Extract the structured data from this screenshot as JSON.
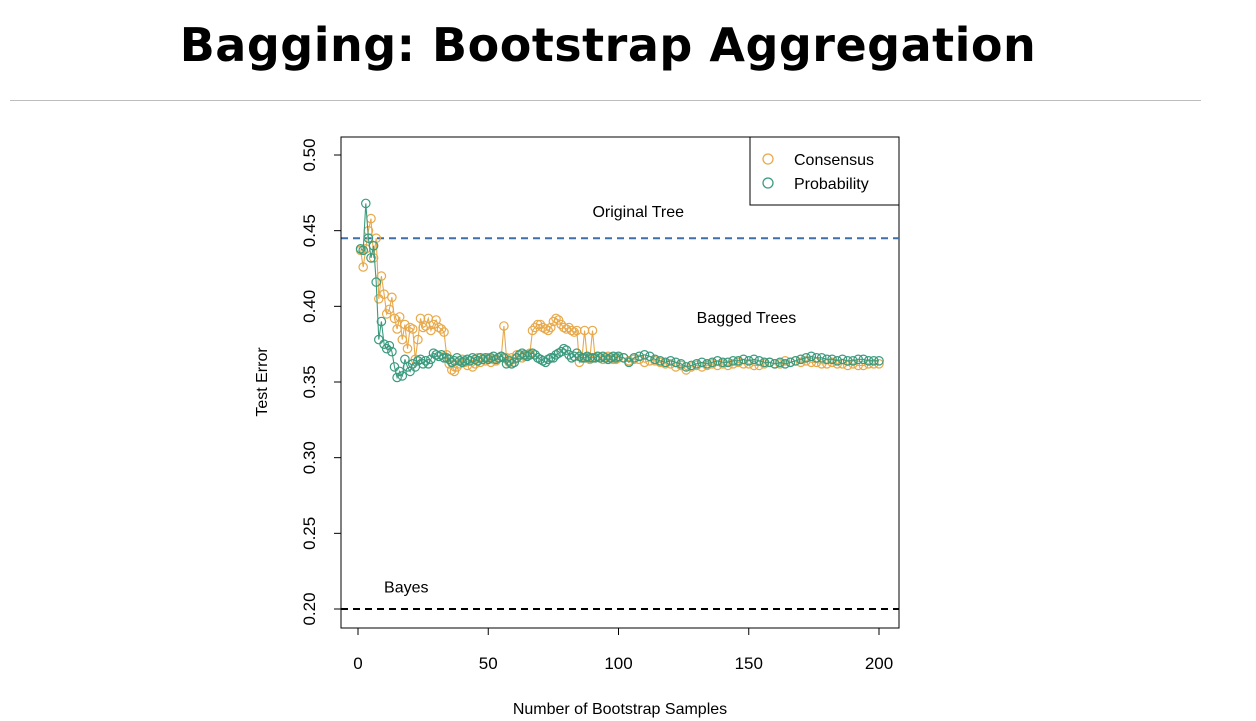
{
  "slide": {
    "title": "Bagging: Bootstrap Aggregation"
  },
  "chart_data": {
    "type": "line",
    "xlabel": "Number of Bootstrap Samples",
    "ylabel": "Test Error",
    "xlim": [
      0,
      200
    ],
    "ylim": [
      0.2,
      0.5
    ],
    "x_ticks": [
      "0",
      "50",
      "100",
      "150",
      "200"
    ],
    "y_ticks": [
      "0.20",
      "0.25",
      "0.30",
      "0.35",
      "0.40",
      "0.45",
      "0.50"
    ],
    "grid": false,
    "legend_position": "top-right",
    "series": [
      {
        "name": "Consensus",
        "color": "#E8A94A",
        "marker": "open-circle",
        "x": [
          1,
          2,
          3,
          4,
          5,
          6,
          7,
          8,
          9,
          10,
          11,
          12,
          13,
          14,
          15,
          16,
          17,
          18,
          19,
          20,
          21,
          22,
          23,
          24,
          25,
          26,
          27,
          28,
          29,
          30,
          31,
          32,
          33,
          34,
          35,
          36,
          37,
          38,
          39,
          40,
          41,
          42,
          43,
          44,
          45,
          46,
          47,
          48,
          49,
          50,
          51,
          52,
          53,
          54,
          55,
          56,
          57,
          58,
          59,
          60,
          61,
          62,
          63,
          64,
          65,
          66,
          67,
          68,
          69,
          70,
          71,
          72,
          73,
          74,
          75,
          76,
          77,
          78,
          79,
          80,
          81,
          82,
          83,
          84,
          85,
          86,
          87,
          88,
          89,
          90,
          91,
          92,
          93,
          94,
          95,
          96,
          97,
          98,
          99,
          100,
          102,
          104,
          106,
          108,
          110,
          112,
          114,
          116,
          118,
          120,
          122,
          124,
          126,
          128,
          130,
          132,
          134,
          136,
          138,
          140,
          142,
          144,
          146,
          148,
          150,
          152,
          154,
          156,
          158,
          160,
          162,
          164,
          166,
          168,
          170,
          172,
          174,
          176,
          178,
          180,
          182,
          184,
          186,
          188,
          190,
          192,
          194,
          196,
          198,
          200
        ],
        "values": [
          0.437,
          0.426,
          0.438,
          0.45,
          0.458,
          0.432,
          0.445,
          0.405,
          0.42,
          0.408,
          0.395,
          0.398,
          0.406,
          0.392,
          0.385,
          0.393,
          0.378,
          0.388,
          0.372,
          0.386,
          0.385,
          0.365,
          0.378,
          0.392,
          0.386,
          0.387,
          0.392,
          0.384,
          0.388,
          0.391,
          0.386,
          0.385,
          0.383,
          0.368,
          0.362,
          0.358,
          0.357,
          0.36,
          0.362,
          0.365,
          0.363,
          0.361,
          0.364,
          0.36,
          0.362,
          0.366,
          0.363,
          0.365,
          0.364,
          0.366,
          0.363,
          0.365,
          0.364,
          0.366,
          0.367,
          0.387,
          0.366,
          0.363,
          0.366,
          0.365,
          0.368,
          0.368,
          0.366,
          0.367,
          0.368,
          0.369,
          0.384,
          0.386,
          0.388,
          0.388,
          0.386,
          0.385,
          0.384,
          0.386,
          0.39,
          0.392,
          0.391,
          0.388,
          0.386,
          0.385,
          0.386,
          0.384,
          0.383,
          0.384,
          0.363,
          0.366,
          0.384,
          0.366,
          0.365,
          0.384,
          0.366,
          0.367,
          0.366,
          0.365,
          0.366,
          0.367,
          0.366,
          0.365,
          0.365,
          0.366,
          0.366,
          0.364,
          0.365,
          0.365,
          0.363,
          0.364,
          0.364,
          0.363,
          0.362,
          0.362,
          0.36,
          0.361,
          0.358,
          0.36,
          0.361,
          0.36,
          0.361,
          0.362,
          0.361,
          0.362,
          0.361,
          0.362,
          0.363,
          0.362,
          0.362,
          0.361,
          0.361,
          0.362,
          0.363,
          0.362,
          0.362,
          0.364,
          0.363,
          0.364,
          0.363,
          0.364,
          0.363,
          0.363,
          0.362,
          0.362,
          0.363,
          0.362,
          0.362,
          0.361,
          0.362,
          0.361,
          0.361,
          0.362,
          0.362,
          0.362
        ]
      },
      {
        "name": "Probability",
        "color": "#3B9B7E",
        "marker": "open-circle",
        "x": [
          1,
          2,
          3,
          4,
          5,
          6,
          7,
          8,
          9,
          10,
          11,
          12,
          13,
          14,
          15,
          16,
          17,
          18,
          19,
          20,
          21,
          22,
          23,
          24,
          25,
          26,
          27,
          28,
          29,
          30,
          31,
          32,
          33,
          34,
          35,
          36,
          37,
          38,
          39,
          40,
          41,
          42,
          43,
          44,
          45,
          46,
          47,
          48,
          49,
          50,
          51,
          52,
          53,
          54,
          55,
          56,
          57,
          58,
          59,
          60,
          61,
          62,
          63,
          64,
          65,
          66,
          67,
          68,
          69,
          70,
          71,
          72,
          73,
          74,
          75,
          76,
          77,
          78,
          79,
          80,
          81,
          82,
          83,
          84,
          85,
          86,
          87,
          88,
          89,
          90,
          91,
          92,
          93,
          94,
          95,
          96,
          97,
          98,
          99,
          100,
          102,
          104,
          106,
          108,
          110,
          112,
          114,
          116,
          118,
          120,
          122,
          124,
          126,
          128,
          130,
          132,
          134,
          136,
          138,
          140,
          142,
          144,
          146,
          148,
          150,
          152,
          154,
          156,
          158,
          160,
          162,
          164,
          166,
          168,
          170,
          172,
          174,
          176,
          178,
          180,
          182,
          184,
          186,
          188,
          190,
          192,
          194,
          196,
          198,
          200
        ],
        "values": [
          0.438,
          0.437,
          0.468,
          0.445,
          0.432,
          0.44,
          0.416,
          0.378,
          0.39,
          0.375,
          0.372,
          0.374,
          0.37,
          0.36,
          0.353,
          0.357,
          0.354,
          0.365,
          0.36,
          0.357,
          0.362,
          0.36,
          0.364,
          0.365,
          0.362,
          0.364,
          0.362,
          0.365,
          0.369,
          0.368,
          0.367,
          0.368,
          0.366,
          0.366,
          0.365,
          0.363,
          0.364,
          0.366,
          0.364,
          0.363,
          0.364,
          0.365,
          0.364,
          0.366,
          0.365,
          0.364,
          0.366,
          0.365,
          0.366,
          0.365,
          0.366,
          0.367,
          0.365,
          0.366,
          0.367,
          0.366,
          0.362,
          0.364,
          0.362,
          0.363,
          0.366,
          0.368,
          0.369,
          0.368,
          0.367,
          0.368,
          0.369,
          0.368,
          0.366,
          0.365,
          0.364,
          0.363,
          0.365,
          0.366,
          0.366,
          0.368,
          0.369,
          0.37,
          0.372,
          0.371,
          0.368,
          0.366,
          0.367,
          0.369,
          0.367,
          0.366,
          0.366,
          0.367,
          0.366,
          0.366,
          0.366,
          0.367,
          0.366,
          0.367,
          0.366,
          0.365,
          0.366,
          0.367,
          0.366,
          0.367,
          0.366,
          0.363,
          0.366,
          0.367,
          0.368,
          0.367,
          0.365,
          0.364,
          0.363,
          0.364,
          0.363,
          0.362,
          0.36,
          0.361,
          0.362,
          0.363,
          0.362,
          0.363,
          0.364,
          0.363,
          0.363,
          0.364,
          0.364,
          0.365,
          0.364,
          0.365,
          0.364,
          0.363,
          0.363,
          0.362,
          0.363,
          0.362,
          0.363,
          0.364,
          0.365,
          0.366,
          0.367,
          0.366,
          0.366,
          0.365,
          0.365,
          0.364,
          0.365,
          0.364,
          0.364,
          0.365,
          0.365,
          0.364,
          0.364,
          0.364
        ]
      }
    ],
    "reference_lines": [
      {
        "label": "Original Tree",
        "y": 0.445,
        "color": "#3D6FA8",
        "style": "dashed"
      },
      {
        "label": "Bayes",
        "y": 0.2,
        "color": "#000000",
        "style": "dashed"
      }
    ],
    "annotations": [
      {
        "text": "Original Tree",
        "x": 90,
        "y": 0.459
      },
      {
        "text": "Bagged Trees",
        "x": 130,
        "y": 0.389
      },
      {
        "text": "Bayes",
        "x": 10,
        "y": 0.211
      }
    ]
  }
}
